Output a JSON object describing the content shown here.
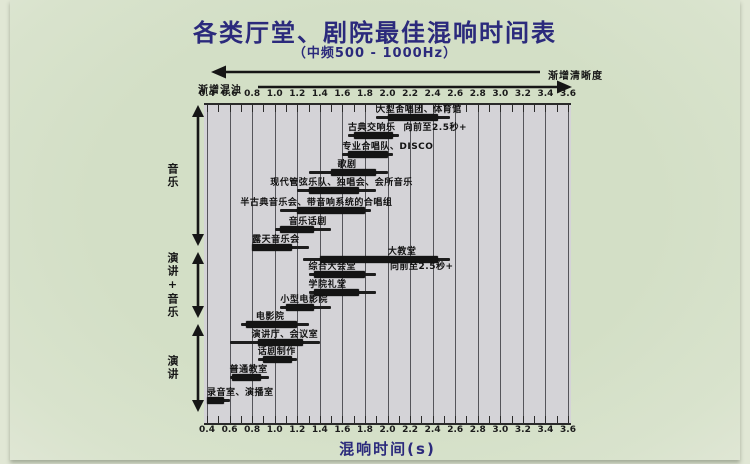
{
  "title": "各类厅堂、剧院最佳混响时间表",
  "subtitle": "（中频500 - 1000Hz）",
  "arrows": {
    "clarity_label": "渐增清晰度",
    "muddiness_label": "渐增混浊"
  },
  "chart_data": {
    "type": "bar",
    "subtype": "horizontal-range-bars",
    "title": "各类厅堂、剧院最佳混响时间表",
    "subtitle": "（中频500 - 1000Hz）",
    "xlabel": "混响时间(s)",
    "xlim": [
      0.4,
      3.6
    ],
    "x_ticks": [
      0.4,
      0.6,
      0.8,
      1.0,
      1.2,
      1.4,
      1.6,
      1.8,
      2.0,
      2.2,
      2.4,
      2.6,
      2.8,
      3.0,
      3.2,
      3.4,
      3.6
    ],
    "minor_tick_step": 0.1,
    "grid": true,
    "groups": [
      {
        "name": "音乐",
        "row_start": 0,
        "row_end": 7
      },
      {
        "name": "演讲+音乐",
        "row_start": 8,
        "row_end": 11
      },
      {
        "name": "演讲",
        "row_start": 12,
        "row_end": 16
      }
    ],
    "series": [
      {
        "label": "大型合唱团、体育馆",
        "group": "音乐",
        "range": [
          1.9,
          2.55
        ],
        "core": [
          2.0,
          2.45
        ]
      },
      {
        "label": "古典交响乐",
        "note": "向前至2.5秒+",
        "group": "音乐",
        "range": [
          1.65,
          2.1
        ],
        "core": [
          1.7,
          2.05
        ]
      },
      {
        "label": "专业合唱队、DISCO",
        "group": "音乐",
        "range": [
          1.6,
          2.05
        ],
        "core": [
          1.65,
          2.0
        ]
      },
      {
        "label": "歌剧",
        "group": "音乐",
        "range": [
          1.3,
          2.0
        ],
        "core": [
          1.5,
          1.9
        ]
      },
      {
        "label": "现代管弦乐队、独唱会、会所音乐",
        "group": "音乐",
        "range": [
          1.2,
          1.9
        ],
        "core": [
          1.3,
          1.75
        ]
      },
      {
        "label": "半古典音乐会、带音响系统的合唱组",
        "group": "音乐",
        "range": [
          1.05,
          1.85
        ],
        "core": [
          1.2,
          1.8
        ]
      },
      {
        "label": "音乐话剧",
        "group": "音乐",
        "range": [
          1.0,
          1.5
        ],
        "core": [
          1.05,
          1.35
        ]
      },
      {
        "label": "露天音乐会",
        "group": "音乐",
        "range": [
          0.8,
          1.3
        ],
        "core": [
          0.8,
          1.15
        ]
      },
      {
        "label": "大教堂",
        "group": "演讲+音乐",
        "range": [
          1.25,
          2.55
        ],
        "core": [
          1.4,
          2.45
        ]
      },
      {
        "label": "综合大会堂",
        "note": "向前至2.5秒+",
        "group": "演讲+音乐",
        "range": [
          1.3,
          1.9
        ],
        "core": [
          1.35,
          1.8
        ]
      },
      {
        "label": "学院礼堂",
        "group": "演讲+音乐",
        "range": [
          1.3,
          1.9
        ],
        "core": [
          1.35,
          1.75
        ]
      },
      {
        "label": "小型电影院",
        "group": "演讲+音乐",
        "range": [
          1.05,
          1.5
        ],
        "core": [
          1.1,
          1.35
        ]
      },
      {
        "label": "电影院",
        "group": "演讲",
        "range": [
          0.7,
          1.3
        ],
        "core": [
          0.75,
          1.2
        ]
      },
      {
        "label": "演讲厅、会议室",
        "group": "演讲",
        "range": [
          0.6,
          1.4
        ],
        "core": [
          0.85,
          1.25
        ]
      },
      {
        "label": "话剧制作",
        "group": "演讲",
        "range": [
          0.85,
          1.2
        ],
        "core": [
          0.9,
          1.15
        ]
      },
      {
        "label": "普通教室",
        "group": "演讲",
        "range": [
          0.6,
          0.95
        ],
        "core": [
          0.62,
          0.88
        ]
      },
      {
        "label": "录音室、演播室",
        "group": "演讲",
        "range": [
          0.4,
          0.6
        ],
        "core": [
          0.4,
          0.55
        ]
      }
    ]
  },
  "colors": {
    "title_navy": "#2b2a7c",
    "bar_black": "#141414",
    "panel_gray": "#d4d3d7",
    "photo_green": "#d3dfc6"
  }
}
